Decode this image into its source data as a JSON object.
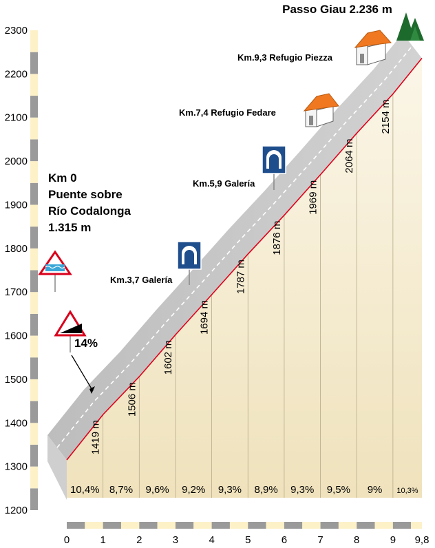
{
  "chart_data": {
    "type": "area",
    "title": "Passo Giau 2.236 m",
    "start": [
      "Km 0",
      "Puente sobre",
      "Río Codalonga",
      "1.315 m"
    ],
    "x": [
      0,
      1,
      2,
      3,
      4,
      5,
      6,
      7,
      8,
      9,
      9.8
    ],
    "x_tick_labels": [
      "0",
      "1",
      "2",
      "3",
      "4",
      "5",
      "6",
      "7",
      "8",
      "9",
      "9,8"
    ],
    "elevations": [
      1315,
      1419,
      1506,
      1602,
      1694,
      1787,
      1876,
      1969,
      2064,
      2154,
      2236
    ],
    "elevation_labels": [
      "1419 m",
      "1506 m",
      "1602 m",
      "1694 m",
      "1787 m",
      "1876 m",
      "1969 m",
      "2064 m",
      "2154 m"
    ],
    "gradients": [
      "10,4%",
      "8,7%",
      "9,6%",
      "9,2%",
      "9,3%",
      "8,9%",
      "9,3%",
      "9,5%",
      "9%",
      "10,3%"
    ],
    "y_ticks": [
      1200,
      1300,
      1400,
      1500,
      1600,
      1700,
      1800,
      1900,
      2000,
      2100,
      2200,
      2300
    ],
    "ylim": [
      1200,
      2300
    ],
    "xlim": [
      0,
      9.8
    ],
    "max_gradient": "14%",
    "waypoints": [
      {
        "label": "Km.3,7 Galería",
        "icon": "tunnel-sign-icon"
      },
      {
        "label": "Km.5,9 Galería",
        "icon": "tunnel-sign-icon"
      },
      {
        "label": "Km.7,4 Refugio Fedare",
        "icon": "hut-icon"
      },
      {
        "label": "Km.9,3 Refugio Piezza",
        "icon": "hut-icon"
      }
    ],
    "colors": {
      "road": "#c8c8c8",
      "profile_line": "#e0001b",
      "fill_top": "#fbf6e8",
      "fill_bottom": "#efe2bc",
      "sign_blue": "#1f4e8c",
      "hut_roof": "#f07820",
      "trees": "#1d6b2c",
      "axis_gray": "#9a9a9a",
      "axis_cream": "#fdf1c8"
    }
  }
}
